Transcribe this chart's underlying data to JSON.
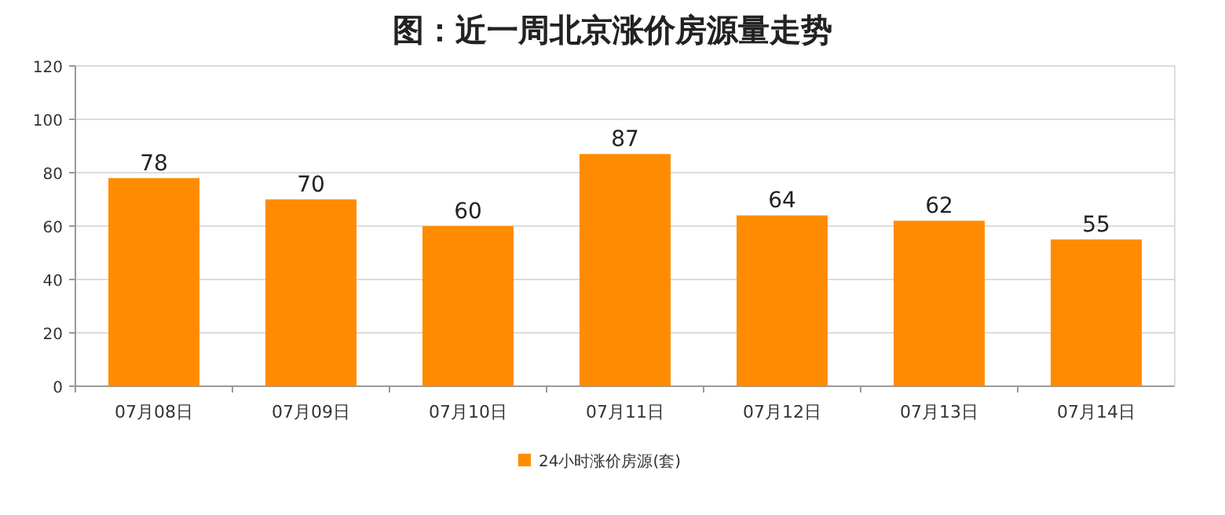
{
  "chart_data": {
    "type": "bar",
    "title": "图：近一周北京涨价房源量走势",
    "categories": [
      "07月08日",
      "07月09日",
      "07月10日",
      "07月11日",
      "07月12日",
      "07月13日",
      "07月14日"
    ],
    "series": [
      {
        "name": "24小时涨价房源(套)",
        "color": "#ff8c00",
        "values": [
          78,
          70,
          60,
          87,
          64,
          62,
          55
        ]
      }
    ],
    "ylim": [
      0,
      120
    ],
    "yticks": [
      0,
      20,
      40,
      60,
      80,
      100,
      120
    ],
    "grid": "y",
    "legend": "bottom",
    "data_labels": true
  }
}
